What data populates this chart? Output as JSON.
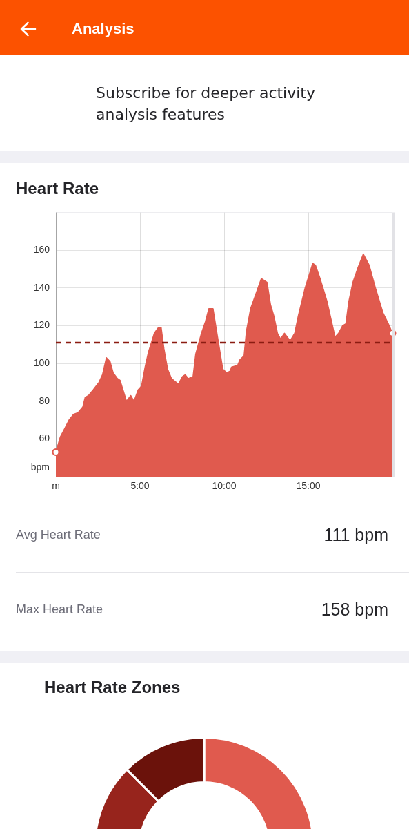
{
  "chart_data": [
    {
      "type": "other",
      "title": "Analysis",
      "annotations": [
        "Subscribe for deeper activity analysis features"
      ]
    },
    {
      "type": "area",
      "title": "Heart Rate",
      "ylabel": "bpm",
      "series": [
        {
          "type": "area",
          "color": "#e05a4e",
          "x": [
            0,
            0.26,
            0.44,
            0.78,
            1.05,
            1.33,
            1.6,
            1.74,
            1.94,
            2.22,
            2.56,
            2.77,
            3.0,
            3.22,
            3.41,
            3.66,
            3.82,
            4.2,
            4.45,
            4.64,
            4.89,
            5.09,
            5.3,
            5.5,
            5.85,
            6.09,
            6.26,
            6.42,
            6.64,
            6.87,
            7.28,
            7.52,
            7.69,
            7.87,
            8.15,
            8.31,
            8.65,
            8.88,
            9.09,
            9.34,
            9.61,
            9.92,
            10.16,
            10.37,
            10.43,
            10.8,
            10.94,
            11.18,
            11.32,
            11.57,
            11.93,
            12.21,
            12.55,
            12.76,
            12.96,
            13.17,
            13.35,
            13.58,
            13.92,
            14.19,
            14.4,
            14.81,
            15.26,
            15.43,
            15.7,
            16.11,
            16.59,
            16.8,
            17.04,
            17.23,
            17.41,
            17.65,
            17.96,
            18.27,
            18.62,
            18.99,
            19.43,
            19.81,
            20
          ],
          "values": [
            53,
            61,
            64,
            70,
            73,
            74,
            77,
            82,
            83,
            86,
            90,
            94,
            103,
            101,
            95,
            92,
            91,
            80,
            83,
            80,
            86,
            88,
            98,
            106,
            116,
            119,
            119,
            108,
            97,
            92,
            89,
            93,
            94,
            92,
            93,
            105,
            116,
            122,
            129,
            129,
            114,
            97,
            95,
            96,
            98,
            99,
            102,
            104,
            117,
            129,
            138,
            145,
            143,
            131,
            125,
            116,
            113,
            116,
            112,
            116,
            125,
            140,
            153,
            152,
            145,
            133,
            114,
            116,
            120,
            121,
            133,
            143,
            151,
            158,
            152,
            140,
            127,
            120,
            116
          ]
        },
        {
          "type": "scatter",
          "color": "#e05a4e",
          "marker": "circle",
          "x": [
            0,
            20
          ],
          "values": [
            53,
            116
          ]
        }
      ],
      "xlim": [
        0,
        20
      ],
      "ylim": [
        40,
        180
      ],
      "xticks": [
        {
          "value": 0,
          "label": "m"
        },
        {
          "value": 5,
          "label": "5:00"
        },
        {
          "value": 10,
          "label": "10:00"
        },
        {
          "value": 15,
          "label": "15:00"
        }
      ],
      "yticks": [
        60,
        80,
        100,
        120,
        140,
        160
      ],
      "grid": true,
      "ref_lines": [
        {
          "axis": "y",
          "value": 111,
          "color": "#8b1c12",
          "line_style": "dashed"
        }
      ],
      "annotations": [
        "Avg Heart Rate",
        "111 bpm",
        "Max Heart Rate",
        "158 bpm"
      ]
    },
    {
      "type": "donut",
      "title": "Heart Rate Zones",
      "categories": [
        null,
        null,
        null
      ],
      "values": [
        50,
        37.5,
        12.5
      ],
      "colors": [
        "#e05a4e",
        "#97241c",
        "#6b120b"
      ]
    }
  ]
}
